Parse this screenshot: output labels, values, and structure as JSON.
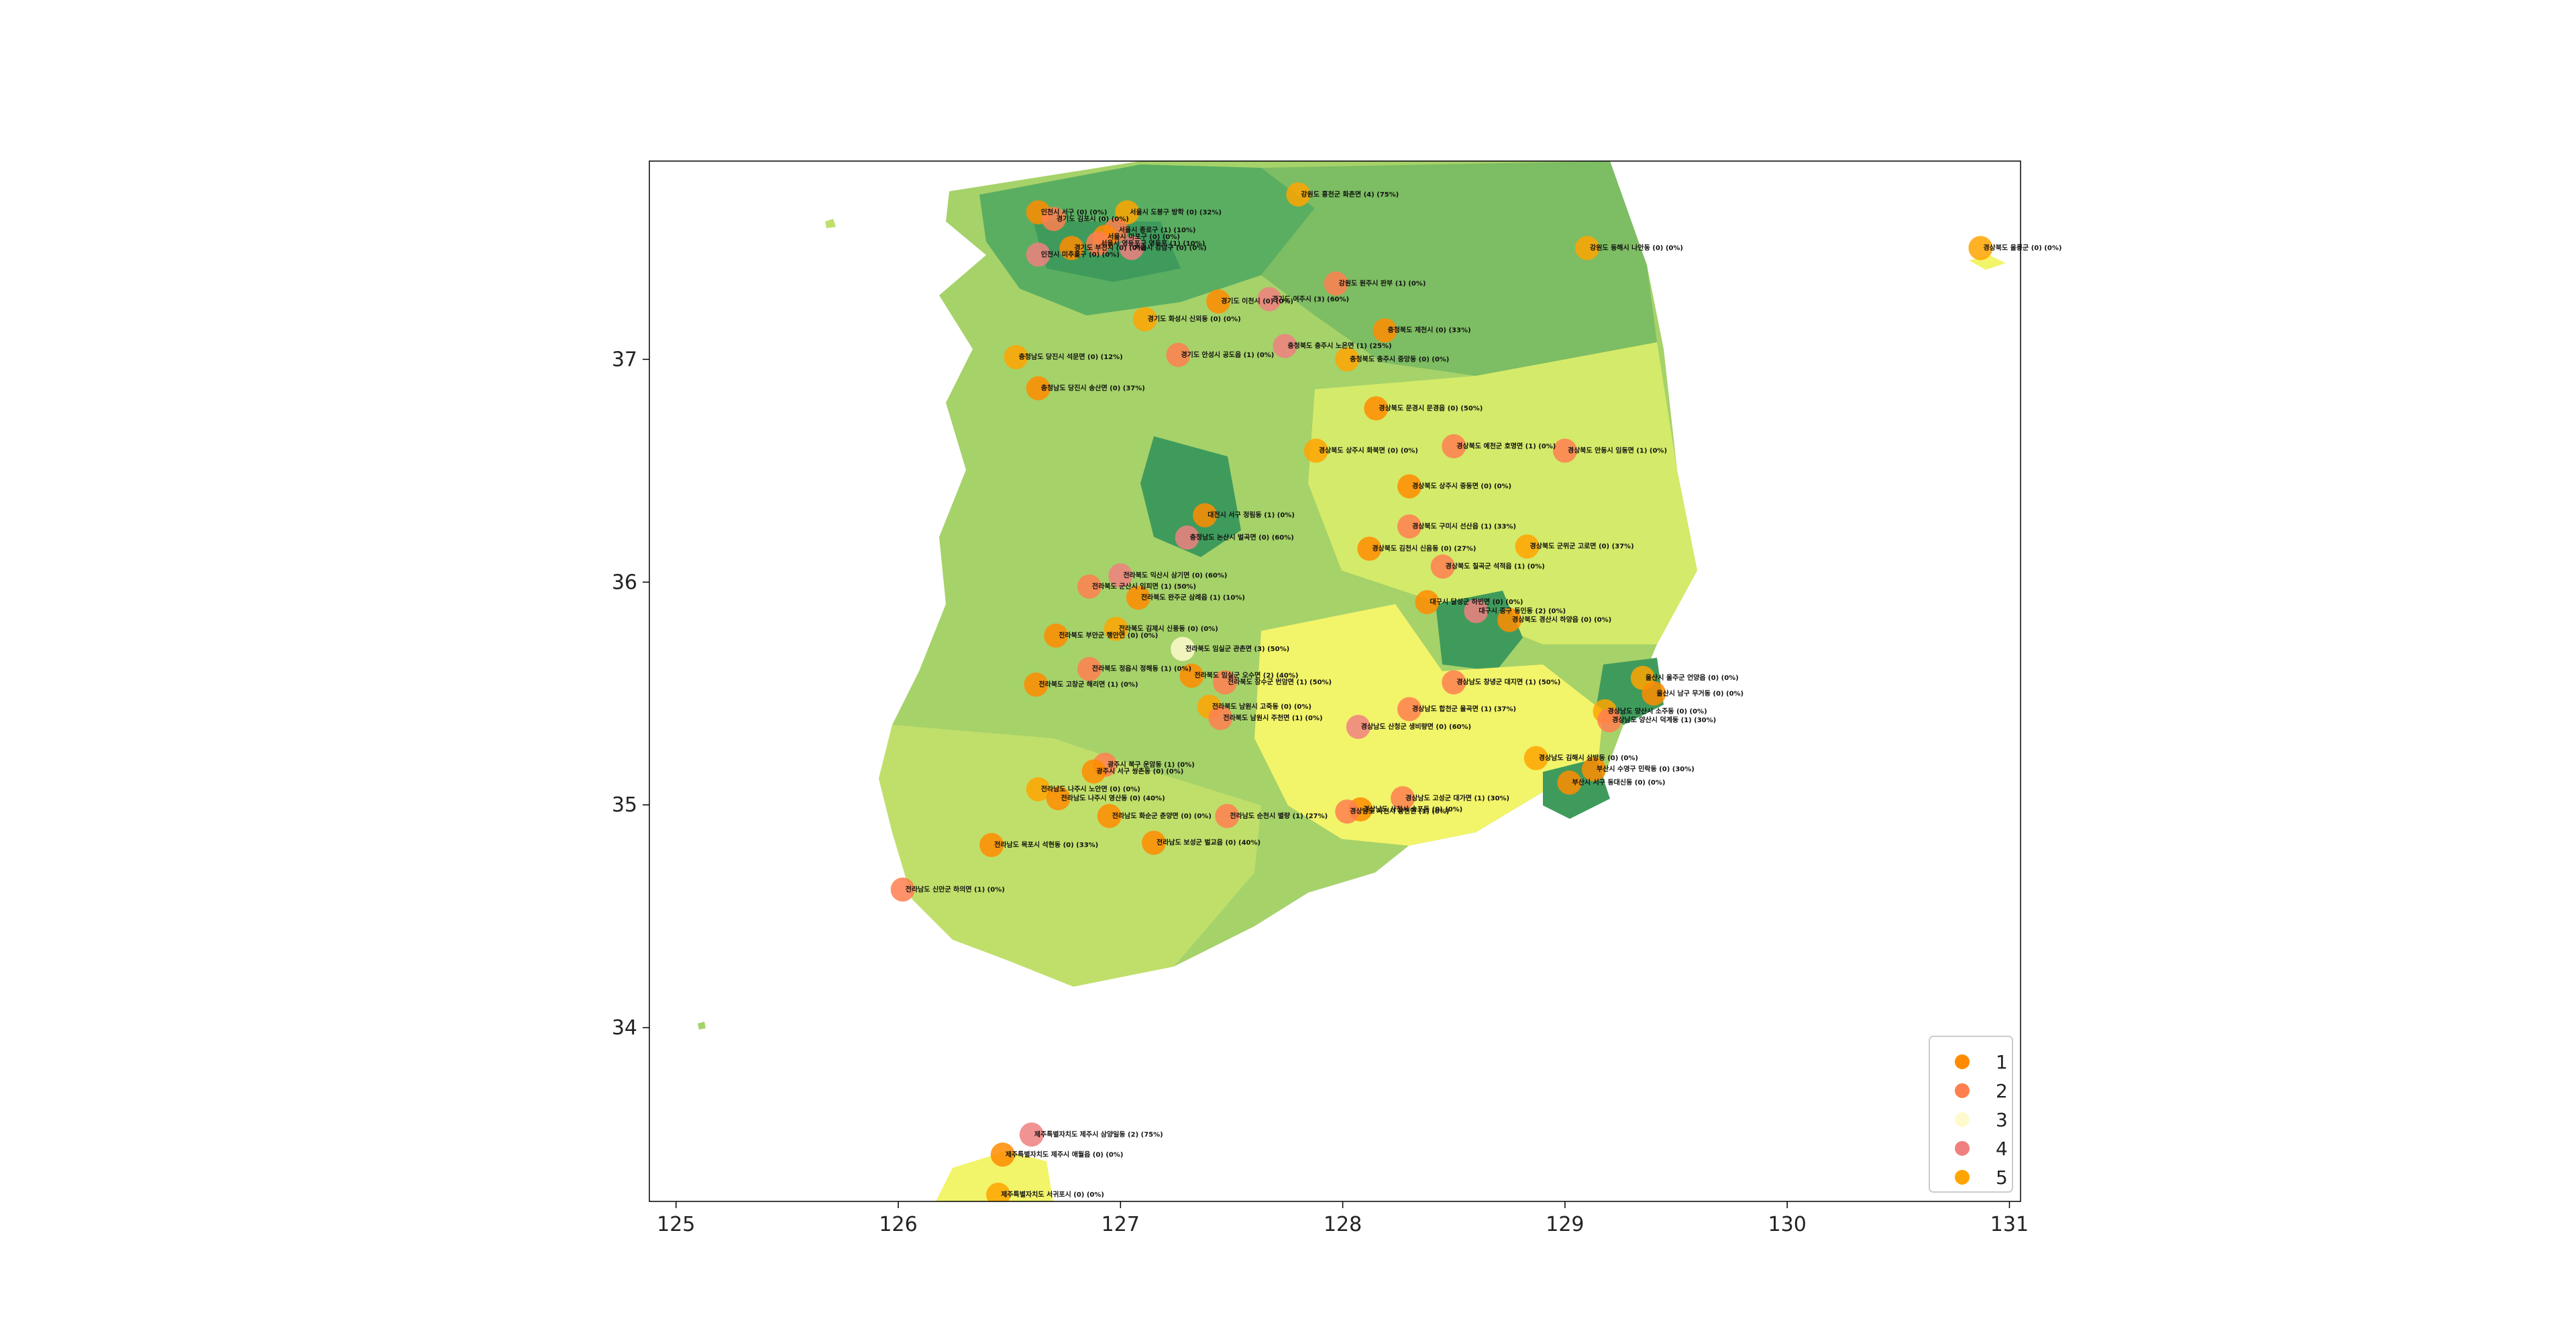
{
  "chart_data": {
    "type": "scatter",
    "title": "",
    "xlabel": "",
    "ylabel": "",
    "xlim": [
      124.88,
      131.05
    ],
    "ylim": [
      33.22,
      37.89
    ],
    "x_ticks": [
      "125",
      "126",
      "127",
      "128",
      "129",
      "130",
      "131"
    ],
    "y_ticks": [
      "34",
      "35",
      "36",
      "37"
    ],
    "grid": false,
    "legend_position": "bottom-right",
    "legend": [
      {
        "label": "1",
        "color": "#ff8c00"
      },
      {
        "label": "2",
        "color": "#ff7f50"
      },
      {
        "label": "3",
        "color": "#fffacd"
      },
      {
        "label": "4",
        "color": "#f08080"
      },
      {
        "label": "5",
        "color": "#ffa500"
      }
    ],
    "points": [
      {
        "lon": 126.63,
        "lat": 37.66,
        "cat": 1,
        "label": "인천시 서구 (0) (0%)"
      },
      {
        "lon": 126.7,
        "lat": 37.63,
        "cat": 2,
        "label": "경기도 김포시 (0) (0%)"
      },
      {
        "lon": 127.03,
        "lat": 37.66,
        "cat": 5,
        "label": "서울시 도봉구 방학 (0) (32%)"
      },
      {
        "lon": 126.98,
        "lat": 37.58,
        "cat": 2,
        "label": "서울시 종로구 (1) (10%)"
      },
      {
        "lon": 126.93,
        "lat": 37.55,
        "cat": 1,
        "label": "서울시 마포구 (0) (0%)"
      },
      {
        "lon": 127.05,
        "lat": 37.5,
        "cat": 4,
        "label": "서울시 강남구 (0) (0%)"
      },
      {
        "lon": 126.9,
        "lat": 37.52,
        "cat": 2,
        "label": "서울시 영등포구 영등포 (1) (10%)"
      },
      {
        "lon": 126.63,
        "lat": 37.47,
        "cat": 4,
        "label": "인천시 미추홀구 (0) (0%)"
      },
      {
        "lon": 126.78,
        "lat": 37.5,
        "cat": 1,
        "label": "경기도 부천시 (0) (0%)"
      },
      {
        "lon": 127.8,
        "lat": 37.74,
        "cat": 5,
        "label": "강원도 홍천군 화촌면 (4) (75%)"
      },
      {
        "lon": 127.97,
        "lat": 37.34,
        "cat": 2,
        "label": "강원도 원주시 판부 (1) (0%)"
      },
      {
        "lon": 127.44,
        "lat": 37.26,
        "cat": 1,
        "label": "경기도 이천시 (0) (0%)"
      },
      {
        "lon": 127.67,
        "lat": 37.27,
        "cat": 4,
        "label": "경기도 여주시 (3) (60%)"
      },
      {
        "lon": 127.11,
        "lat": 37.18,
        "cat": 5,
        "label": "경기도 화성시 신외동 (0) (0%)"
      },
      {
        "lon": 128.19,
        "lat": 37.13,
        "cat": 1,
        "label": "충청북도 제천시 (0) (33%)"
      },
      {
        "lon": 127.26,
        "lat": 37.02,
        "cat": 2,
        "label": "경기도 안성시 공도읍 (1) (0%)"
      },
      {
        "lon": 127.74,
        "lat": 37.06,
        "cat": 4,
        "label": "충청북도 충주시 노은면 (1) (25%)"
      },
      {
        "lon": 128.02,
        "lat": 37.0,
        "cat": 5,
        "label": "충청북도 충주시 중앙동 (0) (0%)"
      },
      {
        "lon": 126.53,
        "lat": 37.01,
        "cat": 5,
        "label": "충청남도 당진시 석문면 (0) (12%)"
      },
      {
        "lon": 126.63,
        "lat": 36.87,
        "cat": 1,
        "label": "충청남도 당진시 송산면 (0) (37%)"
      },
      {
        "lon": 128.15,
        "lat": 36.78,
        "cat": 1,
        "label": "경상북도 문경시 문경읍 (0) (50%)"
      },
      {
        "lon": 127.88,
        "lat": 36.59,
        "cat": 5,
        "label": "경상북도 상주시 화북면 (0) (0%)"
      },
      {
        "lon": 128.5,
        "lat": 36.61,
        "cat": 2,
        "label": "경상북도 예천군 호명면 (1) (0%)"
      },
      {
        "lon": 129.0,
        "lat": 36.59,
        "cat": 2,
        "label": "경상북도 안동시 임동면 (1) (0%)"
      },
      {
        "lon": 128.3,
        "lat": 36.43,
        "cat": 1,
        "label": "경상북도 상주시 중동면 (0) (0%)"
      },
      {
        "lon": 128.3,
        "lat": 36.25,
        "cat": 2,
        "label": "경상북도 구미시 선산읍 (1) (33%)"
      },
      {
        "lon": 128.83,
        "lat": 36.16,
        "cat": 5,
        "label": "경상북도 군위군 고로면 (0) (37%)"
      },
      {
        "lon": 128.12,
        "lat": 36.15,
        "cat": 1,
        "label": "경상북도 김천시 신음동 (0) (27%)"
      },
      {
        "lon": 128.45,
        "lat": 36.07,
        "cat": 2,
        "label": "경상북도 칠곡군 석적읍 (1) (0%)"
      },
      {
        "lon": 127.38,
        "lat": 36.3,
        "cat": 1,
        "label": "대전시 서구 정림동 (1) (0%)"
      },
      {
        "lon": 127.3,
        "lat": 36.2,
        "cat": 4,
        "label": "충청남도 논산시 벌곡면 (0) (60%)"
      },
      {
        "lon": 127.0,
        "lat": 36.03,
        "cat": 4,
        "label": "전라북도 익산시 삼기면 (0) (60%)"
      },
      {
        "lon": 126.86,
        "lat": 35.98,
        "cat": 2,
        "label": "전라북도 군산시 임피면 (1) (50%)"
      },
      {
        "lon": 127.08,
        "lat": 35.93,
        "cat": 1,
        "label": "전라북도 완주군 삼례읍 (1) (10%)"
      },
      {
        "lon": 126.71,
        "lat": 35.76,
        "cat": 1,
        "label": "전라북도 부안군 행안면 (0) (0%)"
      },
      {
        "lon": 126.98,
        "lat": 35.79,
        "cat": 5,
        "label": "전라북도 김제시 신풍동 (0) (0%)"
      },
      {
        "lon": 127.28,
        "lat": 35.7,
        "cat": 3,
        "label": "전라북도 임실군 관촌면 (3) (50%)"
      },
      {
        "lon": 126.86,
        "lat": 35.61,
        "cat": 2,
        "label": "전라북도 정읍시 정해동 (1) (0%)"
      },
      {
        "lon": 126.62,
        "lat": 35.54,
        "cat": 1,
        "label": "전라북도 고창군 해리면 (1) (0%)"
      },
      {
        "lon": 127.32,
        "lat": 35.58,
        "cat": 1,
        "label": "전라북도 임실군 오수면 (2) (40%)"
      },
      {
        "lon": 127.47,
        "lat": 35.55,
        "cat": 2,
        "label": "전라북도 장수군 번암면 (1) (50%)"
      },
      {
        "lon": 127.4,
        "lat": 35.44,
        "cat": 5,
        "label": "전라북도 남원시 고죽동 (0) (0%)"
      },
      {
        "lon": 127.45,
        "lat": 35.39,
        "cat": 2,
        "label": "전라북도 남원시 주천면 (1) (0%)"
      },
      {
        "lon": 128.3,
        "lat": 35.43,
        "cat": 2,
        "label": "경상남도 합천군 율곡면 (1) (37%)"
      },
      {
        "lon": 128.07,
        "lat": 35.35,
        "cat": 4,
        "label": "경상남도 산청군 생비량면 (0) (60%)"
      },
      {
        "lon": 128.5,
        "lat": 35.55,
        "cat": 2,
        "label": "경상남도 창녕군 대지면 (1) (50%)"
      },
      {
        "lon": 128.38,
        "lat": 35.91,
        "cat": 1,
        "label": "대구시 달성군 하빈면 (0) (0%)"
      },
      {
        "lon": 128.6,
        "lat": 35.87,
        "cat": 4,
        "label": "대구시 중구 동인동 (2) (0%)"
      },
      {
        "lon": 128.75,
        "lat": 35.83,
        "cat": 1,
        "label": "경상북도 경산시 하양읍 (0) (0%)"
      },
      {
        "lon": 129.35,
        "lat": 35.57,
        "cat": 5,
        "label": "울산시 울주군 언양읍 (0) (0%)"
      },
      {
        "lon": 129.4,
        "lat": 35.5,
        "cat": 1,
        "label": "울산시 남구 무거동 (0) (0%)"
      },
      {
        "lon": 129.18,
        "lat": 35.42,
        "cat": 5,
        "label": "경상남도 양산시 소주동 (0) (0%)"
      },
      {
        "lon": 129.2,
        "lat": 35.38,
        "cat": 2,
        "label": "경상남도 양산시 덕계동 (1) (30%)"
      },
      {
        "lon": 128.87,
        "lat": 35.21,
        "cat": 5,
        "label": "경상남도 김해시 삼방동 (0) (0%)"
      },
      {
        "lon": 129.13,
        "lat": 35.16,
        "cat": 1,
        "label": "부산시 수영구 민락동 (0) (30%)"
      },
      {
        "lon": 129.02,
        "lat": 35.1,
        "cat": 1,
        "label": "부산시 서구 동대신동 (0) (0%)"
      },
      {
        "lon": 126.93,
        "lat": 35.18,
        "cat": 2,
        "label": "광주시 북구 운암동 (1) (0%)"
      },
      {
        "lon": 126.88,
        "lat": 35.15,
        "cat": 1,
        "label": "광주시 서구 쌍촌동 (0) (0%)"
      },
      {
        "lon": 126.63,
        "lat": 35.07,
        "cat": 5,
        "label": "전라남도 나주시 노안면 (0) (0%)"
      },
      {
        "lon": 126.72,
        "lat": 35.03,
        "cat": 1,
        "label": "전라남도 나주시 영산동 (0) (40%)"
      },
      {
        "lon": 126.95,
        "lat": 34.95,
        "cat": 1,
        "label": "전라남도 화순군 춘양면 (0) (0%)"
      },
      {
        "lon": 127.48,
        "lat": 34.95,
        "cat": 2,
        "label": "전라남도 순천시 별량 (1) (27%)"
      },
      {
        "lon": 128.27,
        "lat": 35.03,
        "cat": 2,
        "label": "경상남도 고성군 대가면 (1) (30%)"
      },
      {
        "lon": 128.08,
        "lat": 34.98,
        "cat": 1,
        "label": "경상남도 사천시 송포동 (0) (0%)"
      },
      {
        "lon": 128.02,
        "lat": 34.97,
        "cat": 2,
        "label": "경상남도 사천시 용현면 (1) (0%)"
      },
      {
        "lon": 126.42,
        "lat": 34.82,
        "cat": 1,
        "label": "전라남도 목포시 석현동 (0) (33%)"
      },
      {
        "lon": 127.15,
        "lat": 34.83,
        "cat": 1,
        "label": "전라남도 보성군 벌교읍 (0) (40%)"
      },
      {
        "lon": 126.02,
        "lat": 34.62,
        "cat": 2,
        "label": "전라남도 신안군 하의면 (1) (0%)"
      },
      {
        "lon": 126.6,
        "lat": 33.52,
        "cat": 4,
        "label": "제주특별자치도 제주시 삼양일동 (2) (75%)"
      },
      {
        "lon": 126.47,
        "lat": 33.43,
        "cat": 1,
        "label": "제주특별자치도 제주시 애월읍 (0) (0%)"
      },
      {
        "lon": 126.45,
        "lat": 33.25,
        "cat": 5,
        "label": "제주특별자치도 서귀포시 (0) (0%)"
      },
      {
        "lon": 129.1,
        "lat": 37.5,
        "cat": 5,
        "label": "강원도 동해시 나안동 (0) (0%)"
      },
      {
        "lon": 130.87,
        "lat": 37.5,
        "cat": 5,
        "label": "경상북도 울릉군 (0) (0%)"
      }
    ]
  },
  "legend_title": ""
}
